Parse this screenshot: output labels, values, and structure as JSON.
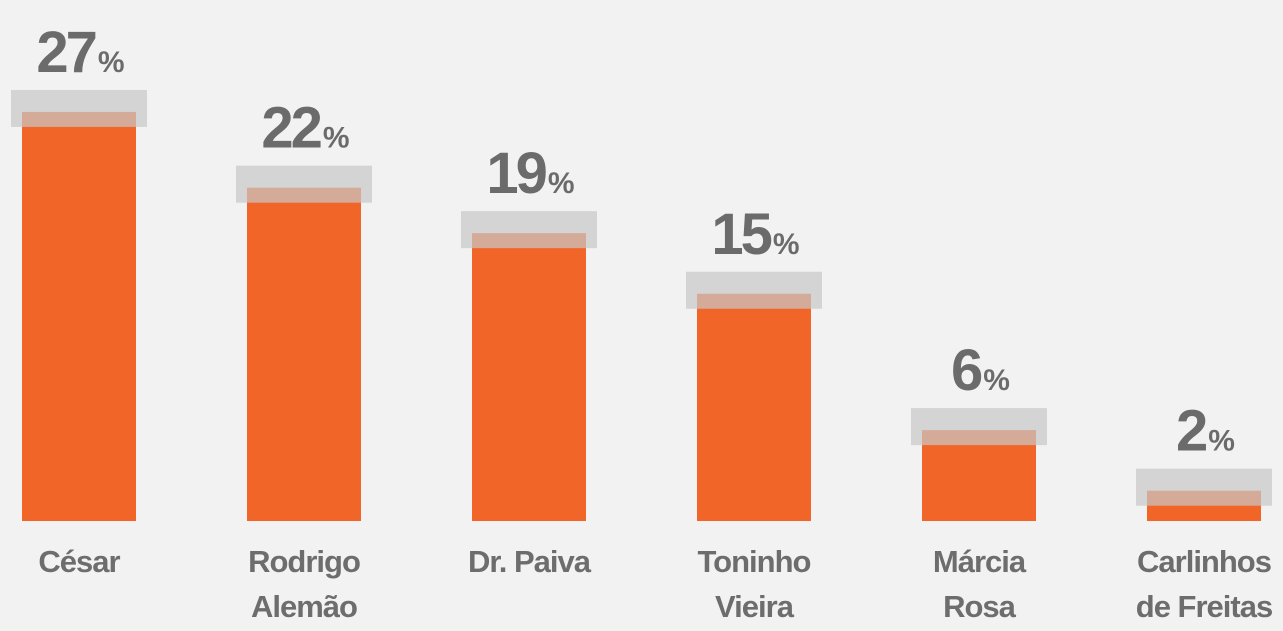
{
  "chart_data": {
    "type": "bar",
    "categories": [
      "César",
      "Rodrigo\nAlemão",
      "Dr. Paiva",
      "Toninho\nVieira",
      "Márcia\nRosa",
      "Carlinhos\nde Freitas"
    ],
    "values": [
      27,
      22,
      19,
      15,
      6,
      2
    ],
    "value_labels": [
      "27%",
      "22%",
      "19%",
      "15%",
      "6%",
      "2%"
    ],
    "color": "#f26529"
  }
}
